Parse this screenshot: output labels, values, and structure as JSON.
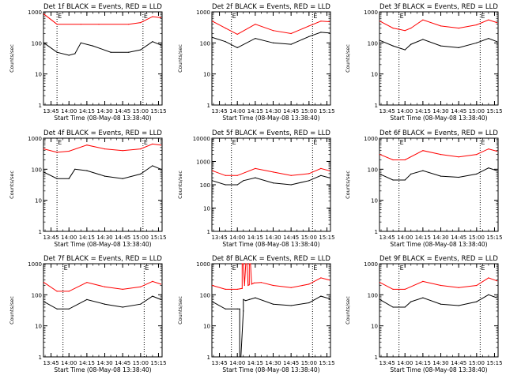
{
  "chart_data": [
    {
      "type": "line",
      "title": "Det 1f BLACK = Events, RED = LLD",
      "xlabel": "Start Time (08-May-08 13:38:40)",
      "ylabel": "Counts/sec",
      "yscale": "log",
      "ylim": [
        1,
        1000
      ],
      "xlim": [
        "13:38:40",
        "15:18:00"
      ],
      "x_ticks": [
        "13:45",
        "14:00",
        "14:15",
        "14:30",
        "14:45",
        "15:00",
        "15:15"
      ],
      "y_ticks": [
        "1",
        "10",
        "100",
        "1000"
      ],
      "dotted_lines": [
        "13:50",
        "15:02"
      ],
      "markers": [
        "E",
        "E"
      ],
      "series": [
        {
          "color": "#ff0000",
          "x": [
            "13:39",
            "13:50",
            "14:10",
            "14:25",
            "14:50",
            "15:00",
            "15:10",
            "15:17"
          ],
          "values": [
            850,
            400,
            400,
            400,
            400,
            450,
            700,
            650
          ]
        },
        {
          "color": "#000000",
          "x": [
            "13:39",
            "13:50",
            "14:00",
            "14:05",
            "14:10",
            "14:20",
            "14:35",
            "14:50",
            "15:00",
            "15:10",
            "15:17"
          ],
          "values": [
            100,
            50,
            40,
            45,
            100,
            80,
            50,
            50,
            60,
            110,
            85
          ]
        }
      ]
    },
    {
      "type": "line",
      "title": "Det 2f BLACK = Events, RED = LLD",
      "xlabel": "Start Time (08-May-08 13:38:40)",
      "ylabel": "Counts/sec",
      "yscale": "log",
      "ylim": [
        1,
        1000
      ],
      "xlim": [
        "13:38:40",
        "15:18:00"
      ],
      "x_ticks": [
        "13:45",
        "14:00",
        "14:15",
        "14:30",
        "14:45",
        "15:00",
        "15:15"
      ],
      "y_ticks": [
        "1",
        "10",
        "100",
        "1000"
      ],
      "dotted_lines": [
        "13:55",
        "15:03"
      ],
      "markers": [
        "E",
        "E"
      ],
      "series": [
        {
          "color": "#ff0000",
          "x": [
            "13:39",
            "13:50",
            "14:00",
            "14:15",
            "14:30",
            "14:45",
            "15:00",
            "15:10",
            "15:17"
          ],
          "values": [
            500,
            300,
            190,
            400,
            250,
            200,
            350,
            500,
            480
          ]
        },
        {
          "color": "#000000",
          "x": [
            "13:39",
            "13:50",
            "14:00",
            "14:15",
            "14:30",
            "14:45",
            "15:00",
            "15:10",
            "15:17"
          ],
          "values": [
            150,
            110,
            70,
            140,
            100,
            90,
            160,
            220,
            210
          ]
        }
      ]
    },
    {
      "type": "line",
      "title": "Det 3f BLACK = Events, RED = LLD",
      "xlabel": "Start Time (08-May-08 13:38:40)",
      "ylabel": "Counts/sec",
      "yscale": "log",
      "ylim": [
        1,
        1000
      ],
      "xlim": [
        "13:38:40",
        "15:18:00"
      ],
      "x_ticks": [
        "13:45",
        "14:00",
        "14:15",
        "14:30",
        "14:45",
        "15:00",
        "15:15"
      ],
      "y_ticks": [
        "1",
        "10",
        "100",
        "1000"
      ],
      "dotted_lines": [
        "13:55",
        "15:03"
      ],
      "markers": [
        "E",
        "E"
      ],
      "series": [
        {
          "color": "#ff0000",
          "x": [
            "13:39",
            "13:50",
            "14:00",
            "14:05",
            "14:15",
            "14:30",
            "14:45",
            "15:00",
            "15:10",
            "15:17"
          ],
          "values": [
            500,
            300,
            250,
            300,
            550,
            350,
            300,
            380,
            550,
            450
          ]
        },
        {
          "color": "#000000",
          "x": [
            "13:39",
            "13:50",
            "14:00",
            "14:05",
            "14:15",
            "14:30",
            "14:45",
            "15:00",
            "15:10",
            "15:17"
          ],
          "values": [
            120,
            80,
            60,
            90,
            130,
            80,
            70,
            100,
            140,
            110
          ]
        }
      ]
    },
    {
      "type": "line",
      "title": "Det 4f BLACK = Events, RED = LLD",
      "xlabel": "Start Time (08-May-08 13:38:40)",
      "ylabel": "Counts/sec",
      "yscale": "log",
      "ylim": [
        1,
        1000
      ],
      "xlim": [
        "13:38:40",
        "15:18:00"
      ],
      "x_ticks": [
        "13:45",
        "14:00",
        "14:15",
        "14:30",
        "14:45",
        "15:00",
        "15:15"
      ],
      "y_ticks": [
        "1",
        "10",
        "100",
        "1000"
      ],
      "dotted_lines": [
        "13:50",
        "15:02"
      ],
      "markers": [
        "E",
        "E"
      ],
      "series": [
        {
          "color": "#ff0000",
          "x": [
            "13:39",
            "13:50",
            "14:00",
            "14:15",
            "14:30",
            "14:45",
            "15:00",
            "15:10",
            "15:17"
          ],
          "values": [
            450,
            350,
            380,
            600,
            450,
            400,
            450,
            650,
            600
          ]
        },
        {
          "color": "#000000",
          "x": [
            "13:39",
            "13:50",
            "14:00",
            "14:05",
            "14:15",
            "14:30",
            "14:45",
            "15:00",
            "15:10",
            "15:17"
          ],
          "values": [
            80,
            50,
            50,
            100,
            90,
            60,
            50,
            70,
            130,
            100
          ]
        }
      ]
    },
    {
      "type": "line",
      "title": "Det 5f BLACK = Events, RED = LLD",
      "xlabel": "Start Time (08-May-08 13:38:40)",
      "ylabel": "Counts/sec",
      "yscale": "log",
      "ylim": [
        1,
        10000
      ],
      "xlim": [
        "13:38:40",
        "15:18:00"
      ],
      "x_ticks": [
        "13:45",
        "14:00",
        "14:15",
        "14:30",
        "14:45",
        "15:00",
        "15:15"
      ],
      "y_ticks": [
        "1",
        "10",
        "100",
        "1000",
        "10000"
      ],
      "dotted_lines": [
        "13:55",
        "15:03"
      ],
      "markers": [
        "E",
        "E"
      ],
      "series": [
        {
          "color": "#ff0000",
          "x": [
            "13:39",
            "13:50",
            "14:00",
            "14:15",
            "14:30",
            "14:45",
            "15:00",
            "15:10",
            "15:17"
          ],
          "values": [
            400,
            250,
            250,
            500,
            350,
            250,
            300,
            500,
            400
          ]
        },
        {
          "color": "#000000",
          "x": [
            "13:39",
            "13:50",
            "14:00",
            "14:05",
            "14:15",
            "14:30",
            "14:45",
            "15:00",
            "15:10",
            "15:17"
          ],
          "values": [
            150,
            100,
            100,
            150,
            200,
            120,
            100,
            150,
            250,
            200
          ]
        }
      ]
    },
    {
      "type": "line",
      "title": "Det 6f BLACK = Events, RED = LLD",
      "xlabel": "Start Time (08-May-08 13:38:40)",
      "ylabel": "Counts/sec",
      "yscale": "log",
      "ylim": [
        1,
        1000
      ],
      "xlim": [
        "13:38:40",
        "15:18:00"
      ],
      "x_ticks": [
        "13:45",
        "14:00",
        "14:15",
        "14:30",
        "14:45",
        "15:00",
        "15:15"
      ],
      "y_ticks": [
        "1",
        "10",
        "100",
        "1000"
      ],
      "dotted_lines": [
        "13:55",
        "15:03"
      ],
      "markers": [
        "E",
        "E"
      ],
      "series": [
        {
          "color": "#ff0000",
          "x": [
            "13:39",
            "13:50",
            "14:00",
            "14:15",
            "14:30",
            "14:45",
            "15:00",
            "15:10",
            "15:17"
          ],
          "values": [
            300,
            200,
            200,
            400,
            300,
            250,
            300,
            450,
            380
          ]
        },
        {
          "color": "#000000",
          "x": [
            "13:39",
            "13:50",
            "14:00",
            "14:05",
            "14:15",
            "14:30",
            "14:45",
            "15:00",
            "15:10",
            "15:17"
          ],
          "values": [
            70,
            45,
            45,
            70,
            90,
            60,
            55,
            70,
            110,
            90
          ]
        }
      ]
    },
    {
      "type": "line",
      "title": "Det 7f BLACK = Events, RED = LLD",
      "xlabel": "Start Time (08-May-08 13:38:40)",
      "ylabel": "Counts/sec",
      "yscale": "log",
      "ylim": [
        1,
        1000
      ],
      "xlim": [
        "13:38:40",
        "15:18:00"
      ],
      "x_ticks": [
        "13:45",
        "14:00",
        "14:15",
        "14:30",
        "14:45",
        "15:00",
        "15:15"
      ],
      "y_ticks": [
        "1",
        "10",
        "100",
        "1000"
      ],
      "dotted_lines": [
        "13:55",
        "15:03"
      ],
      "markers": [
        "E",
        "E"
      ],
      "series": [
        {
          "color": "#ff0000",
          "x": [
            "13:39",
            "13:50",
            "14:00",
            "14:15",
            "14:30",
            "14:45",
            "15:00",
            "15:10",
            "15:17"
          ],
          "values": [
            250,
            130,
            130,
            250,
            180,
            150,
            180,
            270,
            220
          ]
        },
        {
          "color": "#000000",
          "x": [
            "13:39",
            "13:50",
            "14:00",
            "14:15",
            "14:30",
            "14:45",
            "15:00",
            "15:10",
            "15:17"
          ],
          "values": [
            60,
            35,
            35,
            70,
            50,
            40,
            50,
            90,
            70
          ]
        }
      ]
    },
    {
      "type": "line",
      "title": "Det 8f BLACK = Events, RED = LLD",
      "xlabel": "Start Time (08-May-08 13:38:40)",
      "ylabel": "Counts/sec",
      "yscale": "log",
      "ylim": [
        1,
        1000
      ],
      "xlim": [
        "13:38:40",
        "15:18:00"
      ],
      "x_ticks": [
        "13:45",
        "14:00",
        "14:15",
        "14:30",
        "14:45",
        "15:00",
        "15:15"
      ],
      "y_ticks": [
        "1",
        "10",
        "100",
        "1000"
      ],
      "dotted_lines": [
        "13:55",
        "15:03"
      ],
      "markers": [
        "E",
        "E"
      ],
      "series": [
        {
          "color": "#ff0000",
          "x": [
            "13:39",
            "13:50",
            "14:00",
            "14:04",
            "14:04",
            "14:05",
            "14:06",
            "14:07",
            "14:08",
            "14:09",
            "14:10",
            "14:10",
            "14:11",
            "14:12",
            "14:13",
            "14:14",
            "14:20",
            "14:30",
            "14:45",
            "15:00",
            "15:10",
            "15:17"
          ],
          "values": [
            200,
            150,
            150,
            160,
            1000,
            1000,
            200,
            1000,
            1000,
            200,
            210,
            1000,
            1000,
            220,
            230,
            240,
            250,
            200,
            170,
            220,
            350,
            300
          ]
        },
        {
          "color": "#000000",
          "x": [
            "13:39",
            "13:50",
            "14:00",
            "14:02",
            "14:02",
            "14:03",
            "14:05",
            "14:05",
            "14:07",
            "14:10",
            "14:15",
            "14:30",
            "14:45",
            "15:00",
            "15:10",
            "15:17"
          ],
          "values": [
            60,
            35,
            35,
            35,
            1,
            1,
            30,
            70,
            65,
            70,
            80,
            50,
            45,
            55,
            90,
            75
          ]
        }
      ]
    },
    {
      "type": "line",
      "title": "Det 9f BLACK = Events, RED = LLD",
      "xlabel": "Start Time (08-May-08 13:38:40)",
      "ylabel": "Counts/sec",
      "yscale": "log",
      "ylim": [
        1,
        1000
      ],
      "xlim": [
        "13:38:40",
        "15:18:00"
      ],
      "x_ticks": [
        "13:45",
        "14:00",
        "14:15",
        "14:30",
        "14:45",
        "15:00",
        "15:15"
      ],
      "y_ticks": [
        "1",
        "10",
        "100",
        "1000"
      ],
      "dotted_lines": [
        "13:55",
        "15:03"
      ],
      "markers": [
        "E",
        "E"
      ],
      "series": [
        {
          "color": "#ff0000",
          "x": [
            "13:39",
            "13:50",
            "14:00",
            "14:15",
            "14:30",
            "14:45",
            "15:00",
            "15:10",
            "15:17"
          ],
          "values": [
            250,
            150,
            150,
            270,
            200,
            170,
            200,
            350,
            280
          ]
        },
        {
          "color": "#000000",
          "x": [
            "13:39",
            "13:50",
            "14:00",
            "14:05",
            "14:15",
            "14:30",
            "14:45",
            "15:00",
            "15:10",
            "15:17"
          ],
          "values": [
            70,
            40,
            40,
            60,
            80,
            50,
            45,
            60,
            100,
            80
          ]
        }
      ]
    }
  ]
}
